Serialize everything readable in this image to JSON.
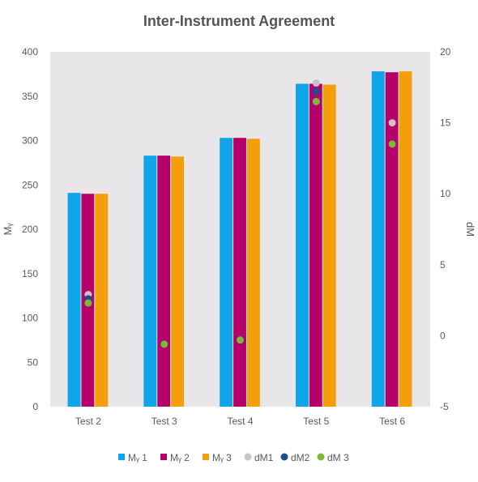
{
  "chart_data": {
    "type": "bar",
    "title": "Inter-Instrument Agreement",
    "ylabel": "Mᵧ",
    "y2label": "dM",
    "categories": [
      "Test 2",
      "Test 3",
      "Test 4",
      "Test 5",
      "Test 6"
    ],
    "ylim": [
      0,
      400
    ],
    "yticks": [
      "0",
      "50",
      "100",
      "150",
      "200",
      "250",
      "300",
      "350",
      "400"
    ],
    "y2lim": [
      -5,
      20
    ],
    "y2ticks": [
      "-5",
      "0",
      "5",
      "10",
      "15",
      "20"
    ],
    "grid": false,
    "legend_position": "bottom",
    "bar_series": [
      {
        "name": "Mᵧ 1",
        "color": "#0ea5e9",
        "values": [
          241,
          283,
          303,
          364,
          378
        ]
      },
      {
        "name": "Mᵧ 2",
        "color": "#b5006a",
        "values": [
          240,
          283,
          303,
          364,
          377
        ]
      },
      {
        "name": "Mᵧ 3",
        "color": "#f59e0b",
        "values": [
          240,
          282,
          302,
          363,
          378
        ]
      }
    ],
    "point_series": [
      {
        "name": "dM1",
        "color": "#c9c2cc",
        "values": [
          2.9,
          null,
          null,
          17.8,
          15.0
        ]
      },
      {
        "name": "dM2",
        "color": "#1f4e8c",
        "values": [
          2.6,
          -0.6,
          -0.3,
          17.2,
          null
        ]
      },
      {
        "name": "dM 3",
        "color": "#7cb83a",
        "values": [
          2.3,
          -0.6,
          -0.3,
          16.5,
          13.5
        ]
      }
    ]
  }
}
